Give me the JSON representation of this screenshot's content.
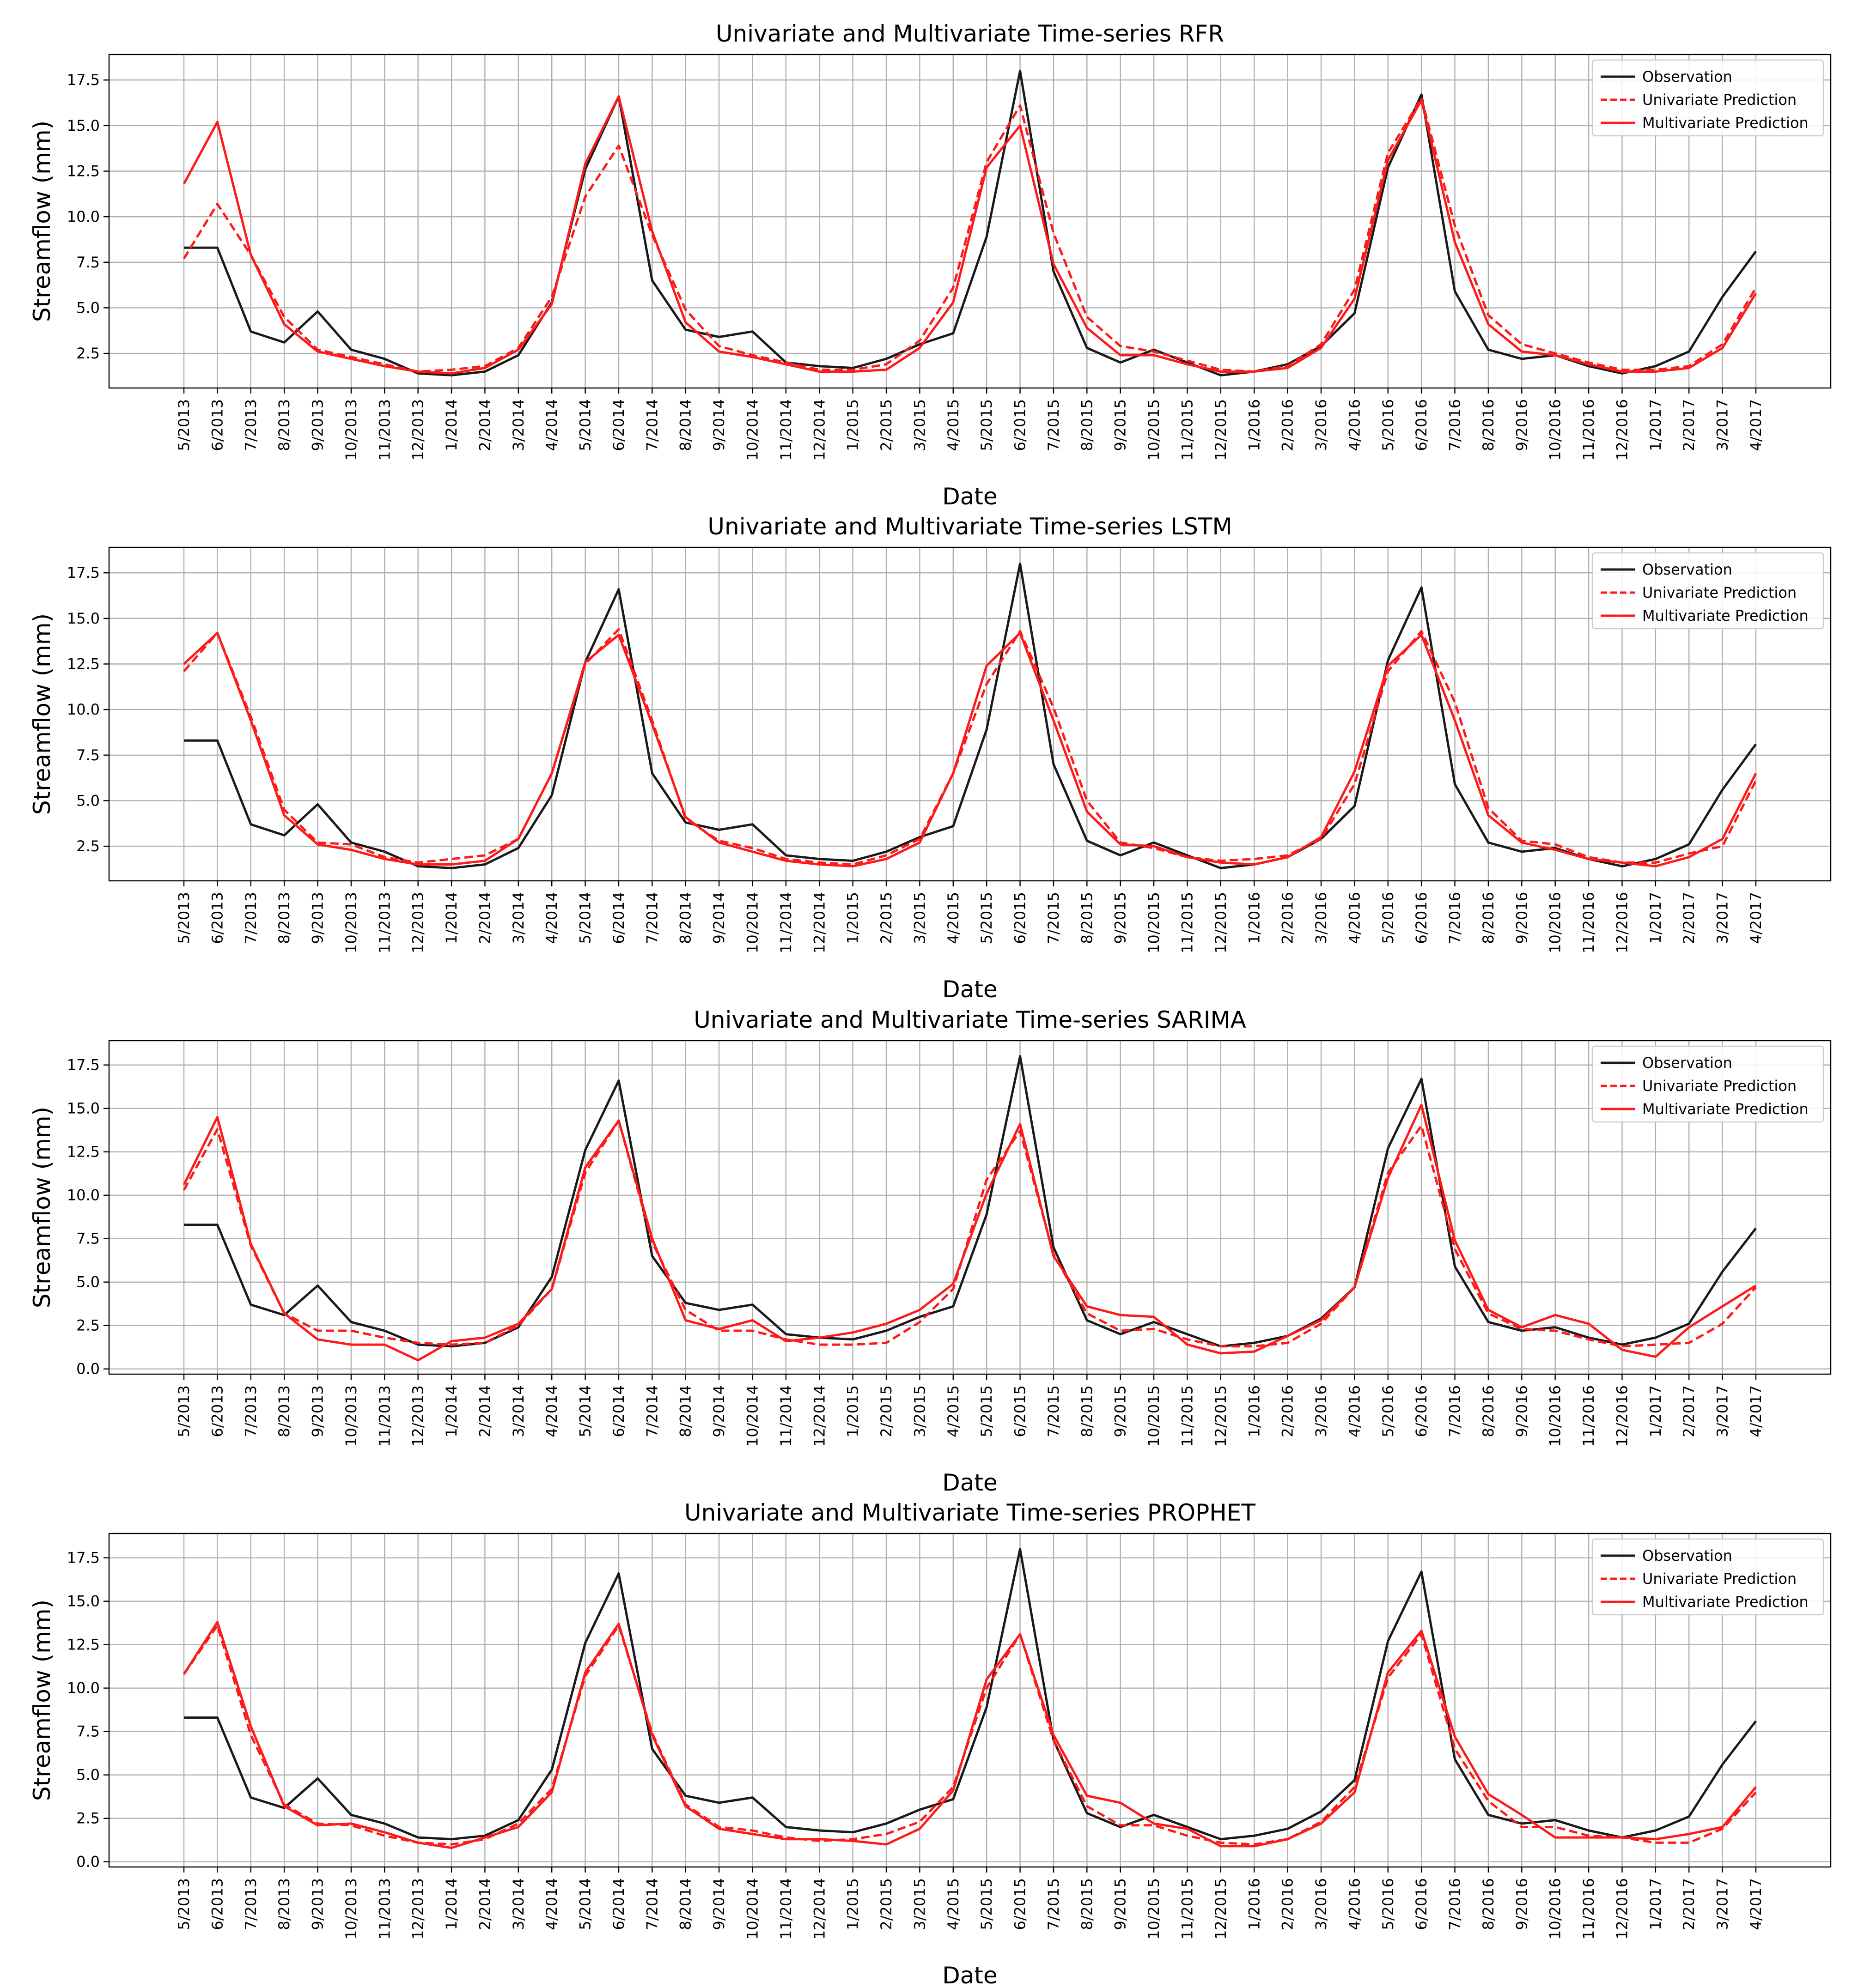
{
  "figure": {
    "background": "#ffffff",
    "colors": {
      "observation": "#1a1a1a",
      "prediction": "#ff1a1a",
      "grid": "#b0b0b0"
    }
  },
  "legend": [
    "Observation",
    "Univariate Prediction",
    "Multivariate Prediction"
  ],
  "chart_data": [
    {
      "type": "line",
      "title": "Univariate and Multivariate Time-series RFR",
      "xlabel": "Date",
      "ylabel": "Streamflow (mm)",
      "ylim": [
        0.6,
        18.9
      ],
      "yticks": [
        2.5,
        5.0,
        7.5,
        10.0,
        12.5,
        15.0,
        17.5
      ],
      "ytick_labels": [
        "2.5",
        "5.0",
        "7.5",
        "10.0",
        "12.5",
        "15.0",
        "17.5"
      ],
      "grid": true,
      "legend_position": "top-right",
      "categories": [
        "5/2013",
        "6/2013",
        "7/2013",
        "8/2013",
        "9/2013",
        "10/2013",
        "11/2013",
        "12/2013",
        "1/2014",
        "2/2014",
        "3/2014",
        "4/2014",
        "5/2014",
        "6/2014",
        "7/2014",
        "8/2014",
        "9/2014",
        "10/2014",
        "11/2014",
        "12/2014",
        "1/2015",
        "2/2015",
        "3/2015",
        "4/2015",
        "5/2015",
        "6/2015",
        "7/2015",
        "8/2015",
        "9/2015",
        "10/2015",
        "11/2015",
        "12/2015",
        "1/2016",
        "2/2016",
        "3/2016",
        "4/2016",
        "5/2016",
        "6/2016",
        "7/2016",
        "8/2016",
        "9/2016",
        "10/2016",
        "11/2016",
        "12/2016",
        "1/2017",
        "2/2017",
        "3/2017",
        "4/2017"
      ],
      "series": [
        {
          "name": "Observation",
          "style": "solid",
          "color": "#1a1a1a",
          "values": [
            8.3,
            8.3,
            3.7,
            3.1,
            4.8,
            2.7,
            2.2,
            1.4,
            1.3,
            1.5,
            2.4,
            5.3,
            12.6,
            16.6,
            6.5,
            3.8,
            3.4,
            3.7,
            2.0,
            1.8,
            1.7,
            2.2,
            3.0,
            3.6,
            8.9,
            18.0,
            7.0,
            2.8,
            2.0,
            2.7,
            2.0,
            1.3,
            1.5,
            1.9,
            2.9,
            4.7,
            12.7,
            16.7,
            5.9,
            2.7,
            2.2,
            2.4,
            1.8,
            1.4,
            1.8,
            2.6,
            5.6,
            8.1
          ]
        },
        {
          "name": "Univariate Prediction",
          "style": "dashed",
          "color": "#ff1a1a",
          "values": [
            7.7,
            10.7,
            7.9,
            4.5,
            2.7,
            2.3,
            1.9,
            1.5,
            1.6,
            1.8,
            2.8,
            5.6,
            11.1,
            13.9,
            9.0,
            4.9,
            2.9,
            2.4,
            2.0,
            1.6,
            1.6,
            1.9,
            3.2,
            6.1,
            13.0,
            16.1,
            9.1,
            4.5,
            2.9,
            2.6,
            2.1,
            1.6,
            1.5,
            1.8,
            3.0,
            6.0,
            13.5,
            16.5,
            9.5,
            4.6,
            3.0,
            2.5,
            2.0,
            1.6,
            1.6,
            1.8,
            3.0,
            6.1
          ]
        },
        {
          "name": "Multivariate Prediction",
          "style": "solid",
          "color": "#ff1a1a",
          "values": [
            11.8,
            15.2,
            7.9,
            4.1,
            2.6,
            2.2,
            1.8,
            1.5,
            1.4,
            1.7,
            2.7,
            5.2,
            12.9,
            16.6,
            9.2,
            4.2,
            2.6,
            2.3,
            1.9,
            1.5,
            1.5,
            1.6,
            2.8,
            5.3,
            12.7,
            15.0,
            7.4,
            3.9,
            2.4,
            2.4,
            1.9,
            1.5,
            1.5,
            1.7,
            2.8,
            5.5,
            13.1,
            16.4,
            8.6,
            4.1,
            2.6,
            2.4,
            1.9,
            1.5,
            1.5,
            1.7,
            2.8,
            5.8
          ]
        }
      ]
    },
    {
      "type": "line",
      "title": "Univariate and Multivariate Time-series LSTM",
      "xlabel": "Date",
      "ylabel": "Streamflow (mm)",
      "ylim": [
        0.6,
        18.9
      ],
      "yticks": [
        2.5,
        5.0,
        7.5,
        10.0,
        12.5,
        15.0,
        17.5
      ],
      "ytick_labels": [
        "2.5",
        "5.0",
        "7.5",
        "10.0",
        "12.5",
        "15.0",
        "17.5"
      ],
      "grid": true,
      "legend_position": "top-right",
      "categories": [
        "5/2013",
        "6/2013",
        "7/2013",
        "8/2013",
        "9/2013",
        "10/2013",
        "11/2013",
        "12/2013",
        "1/2014",
        "2/2014",
        "3/2014",
        "4/2014",
        "5/2014",
        "6/2014",
        "7/2014",
        "8/2014",
        "9/2014",
        "10/2014",
        "11/2014",
        "12/2014",
        "1/2015",
        "2/2015",
        "3/2015",
        "4/2015",
        "5/2015",
        "6/2015",
        "7/2015",
        "8/2015",
        "9/2015",
        "10/2015",
        "11/2015",
        "12/2015",
        "1/2016",
        "2/2016",
        "3/2016",
        "4/2016",
        "5/2016",
        "6/2016",
        "7/2016",
        "8/2016",
        "9/2016",
        "10/2016",
        "11/2016",
        "12/2016",
        "1/2017",
        "2/2017",
        "3/2017",
        "4/2017"
      ],
      "series": [
        {
          "name": "Observation",
          "style": "solid",
          "color": "#1a1a1a",
          "values": [
            8.3,
            8.3,
            3.7,
            3.1,
            4.8,
            2.7,
            2.2,
            1.4,
            1.3,
            1.5,
            2.4,
            5.3,
            12.6,
            16.6,
            6.5,
            3.8,
            3.4,
            3.7,
            2.0,
            1.8,
            1.7,
            2.2,
            3.0,
            3.6,
            8.9,
            18.0,
            7.0,
            2.8,
            2.0,
            2.7,
            2.0,
            1.3,
            1.5,
            1.9,
            2.9,
            4.7,
            12.7,
            16.7,
            5.9,
            2.7,
            2.2,
            2.4,
            1.8,
            1.4,
            1.8,
            2.6,
            5.6,
            8.1
          ]
        },
        {
          "name": "Univariate Prediction",
          "style": "dashed",
          "color": "#ff1a1a",
          "values": [
            12.1,
            14.2,
            9.6,
            4.5,
            2.7,
            2.6,
            1.9,
            1.6,
            1.8,
            2.0,
            2.9,
            6.5,
            12.5,
            14.4,
            9.4,
            4.0,
            2.8,
            2.4,
            1.8,
            1.6,
            1.5,
            2.0,
            2.9,
            6.5,
            11.4,
            14.3,
            10.1,
            5.0,
            2.7,
            2.4,
            1.9,
            1.7,
            1.8,
            2.0,
            2.9,
            5.9,
            12.1,
            14.3,
            10.4,
            4.6,
            2.8,
            2.6,
            1.9,
            1.6,
            1.6,
            2.1,
            2.5,
            6.1
          ]
        },
        {
          "name": "Multivariate Prediction",
          "style": "solid",
          "color": "#ff1a1a",
          "values": [
            12.5,
            14.2,
            9.4,
            4.2,
            2.6,
            2.3,
            1.8,
            1.5,
            1.5,
            1.7,
            2.9,
            6.5,
            12.6,
            14.1,
            9.2,
            4.1,
            2.7,
            2.2,
            1.7,
            1.5,
            1.4,
            1.8,
            2.7,
            6.5,
            12.4,
            14.2,
            9.4,
            4.4,
            2.6,
            2.5,
            1.9,
            1.6,
            1.5,
            1.9,
            3.0,
            6.6,
            12.4,
            14.1,
            9.4,
            4.2,
            2.7,
            2.3,
            1.8,
            1.6,
            1.4,
            1.9,
            2.9,
            6.5
          ]
        }
      ]
    },
    {
      "type": "line",
      "title": "Univariate and Multivariate Time-series SARIMA",
      "xlabel": "Date",
      "ylabel": "Streamflow (mm)",
      "ylim": [
        -0.3,
        18.9
      ],
      "yticks": [
        0.0,
        2.5,
        5.0,
        7.5,
        10.0,
        12.5,
        15.0,
        17.5
      ],
      "ytick_labels": [
        "0.0",
        "2.5",
        "5.0",
        "7.5",
        "10.0",
        "12.5",
        "15.0",
        "17.5"
      ],
      "grid": true,
      "legend_position": "top-right",
      "categories": [
        "5/2013",
        "6/2013",
        "7/2013",
        "8/2013",
        "9/2013",
        "10/2013",
        "11/2013",
        "12/2013",
        "1/2014",
        "2/2014",
        "3/2014",
        "4/2014",
        "5/2014",
        "6/2014",
        "7/2014",
        "8/2014",
        "9/2014",
        "10/2014",
        "11/2014",
        "12/2014",
        "1/2015",
        "2/2015",
        "3/2015",
        "4/2015",
        "5/2015",
        "6/2015",
        "7/2015",
        "8/2015",
        "9/2015",
        "10/2015",
        "11/2015",
        "12/2015",
        "1/2016",
        "2/2016",
        "3/2016",
        "4/2016",
        "5/2016",
        "6/2016",
        "7/2016",
        "8/2016",
        "9/2016",
        "10/2016",
        "11/2016",
        "12/2016",
        "1/2017",
        "2/2017",
        "3/2017",
        "4/2017"
      ],
      "series": [
        {
          "name": "Observation",
          "style": "solid",
          "color": "#1a1a1a",
          "values": [
            8.3,
            8.3,
            3.7,
            3.1,
            4.8,
            2.7,
            2.2,
            1.4,
            1.3,
            1.5,
            2.4,
            5.3,
            12.6,
            16.6,
            6.5,
            3.8,
            3.4,
            3.7,
            2.0,
            1.8,
            1.7,
            2.2,
            3.0,
            3.6,
            8.9,
            18.0,
            7.0,
            2.8,
            2.0,
            2.7,
            2.0,
            1.3,
            1.5,
            1.9,
            2.9,
            4.7,
            12.7,
            16.7,
            5.9,
            2.7,
            2.2,
            2.4,
            1.8,
            1.4,
            1.8,
            2.6,
            5.6,
            8.1
          ]
        },
        {
          "name": "Univariate Prediction",
          "style": "dashed",
          "color": "#ff1a1a",
          "values": [
            10.3,
            13.8,
            7.1,
            3.2,
            2.2,
            2.2,
            1.8,
            1.5,
            1.4,
            1.5,
            2.5,
            4.6,
            11.3,
            14.3,
            7.3,
            3.4,
            2.2,
            2.2,
            1.7,
            1.4,
            1.4,
            1.5,
            2.7,
            4.6,
            10.9,
            13.7,
            6.6,
            3.2,
            2.2,
            2.3,
            1.7,
            1.3,
            1.3,
            1.5,
            2.6,
            4.7,
            11.3,
            14.0,
            6.9,
            3.2,
            2.3,
            2.2,
            1.7,
            1.3,
            1.4,
            1.5,
            2.6,
            4.7
          ]
        },
        {
          "name": "Multivariate Prediction",
          "style": "solid",
          "color": "#ff1a1a",
          "values": [
            10.6,
            14.5,
            7.2,
            3.2,
            1.7,
            1.4,
            1.4,
            0.5,
            1.6,
            1.8,
            2.6,
            4.6,
            11.6,
            14.3,
            7.5,
            2.8,
            2.3,
            2.8,
            1.6,
            1.8,
            2.1,
            2.6,
            3.4,
            4.9,
            10.1,
            14.1,
            6.5,
            3.6,
            3.1,
            3.0,
            1.4,
            0.9,
            1.0,
            1.9,
            2.8,
            4.7,
            11.0,
            15.2,
            7.4,
            3.4,
            2.4,
            3.1,
            2.6,
            1.1,
            0.7,
            2.4,
            3.6,
            4.8
          ]
        }
      ]
    },
    {
      "type": "line",
      "title": "Univariate and Multivariate Time-series PROPHET",
      "xlabel": "Date",
      "ylabel": "Streamflow (mm)",
      "ylim": [
        -0.3,
        18.9
      ],
      "yticks": [
        0.0,
        2.5,
        5.0,
        7.5,
        10.0,
        12.5,
        15.0,
        17.5
      ],
      "ytick_labels": [
        "0.0",
        "2.5",
        "5.0",
        "7.5",
        "10.0",
        "12.5",
        "15.0",
        "17.5"
      ],
      "grid": true,
      "legend_position": "top-right",
      "categories": [
        "5/2013",
        "6/2013",
        "7/2013",
        "8/2013",
        "9/2013",
        "10/2013",
        "11/2013",
        "12/2013",
        "1/2014",
        "2/2014",
        "3/2014",
        "4/2014",
        "5/2014",
        "6/2014",
        "7/2014",
        "8/2014",
        "9/2014",
        "10/2014",
        "11/2014",
        "12/2014",
        "1/2015",
        "2/2015",
        "3/2015",
        "4/2015",
        "5/2015",
        "6/2015",
        "7/2015",
        "8/2015",
        "9/2015",
        "10/2015",
        "11/2015",
        "12/2015",
        "1/2016",
        "2/2016",
        "3/2016",
        "4/2016",
        "5/2016",
        "6/2016",
        "7/2016",
        "8/2016",
        "9/2016",
        "10/2016",
        "11/2016",
        "12/2016",
        "1/2017",
        "2/2017",
        "3/2017",
        "4/2017"
      ],
      "series": [
        {
          "name": "Observation",
          "style": "solid",
          "color": "#1a1a1a",
          "values": [
            8.3,
            8.3,
            3.7,
            3.1,
            4.8,
            2.7,
            2.2,
            1.4,
            1.3,
            1.5,
            2.4,
            5.3,
            12.6,
            16.6,
            6.5,
            3.8,
            3.4,
            3.7,
            2.0,
            1.8,
            1.7,
            2.2,
            3.0,
            3.6,
            8.9,
            18.0,
            7.0,
            2.8,
            2.0,
            2.7,
            2.0,
            1.3,
            1.5,
            1.9,
            2.9,
            4.7,
            12.7,
            16.7,
            5.9,
            2.7,
            2.2,
            2.4,
            1.8,
            1.4,
            1.8,
            2.6,
            5.6,
            8.1
          ]
        },
        {
          "name": "Univariate Prediction",
          "style": "dashed",
          "color": "#ff1a1a",
          "values": [
            10.8,
            13.6,
            7.3,
            3.3,
            2.2,
            2.1,
            1.5,
            1.1,
            1.0,
            1.3,
            2.2,
            4.2,
            10.7,
            13.6,
            7.4,
            3.3,
            2.0,
            1.8,
            1.4,
            1.2,
            1.3,
            1.6,
            2.3,
            4.3,
            10.0,
            13.1,
            7.0,
            3.2,
            2.1,
            2.1,
            1.5,
            1.1,
            1.0,
            1.3,
            2.3,
            4.3,
            10.6,
            13.1,
            6.5,
            3.5,
            2.0,
            2.0,
            1.5,
            1.4,
            1.1,
            1.1,
            1.9,
            4.0
          ]
        },
        {
          "name": "Multivariate Prediction",
          "style": "solid",
          "color": "#ff1a1a",
          "values": [
            10.8,
            13.8,
            7.8,
            3.2,
            2.1,
            2.2,
            1.7,
            1.1,
            0.8,
            1.4,
            2.0,
            4.0,
            10.9,
            13.7,
            7.3,
            3.2,
            1.9,
            1.6,
            1.3,
            1.3,
            1.2,
            1.0,
            1.9,
            4.1,
            10.5,
            13.1,
            7.3,
            3.8,
            3.4,
            2.2,
            1.9,
            0.9,
            0.9,
            1.3,
            2.2,
            4.0,
            10.9,
            13.3,
            7.2,
            3.9,
            2.7,
            1.4,
            1.4,
            1.4,
            1.3,
            1.6,
            2.0,
            4.3
          ]
        }
      ]
    }
  ]
}
